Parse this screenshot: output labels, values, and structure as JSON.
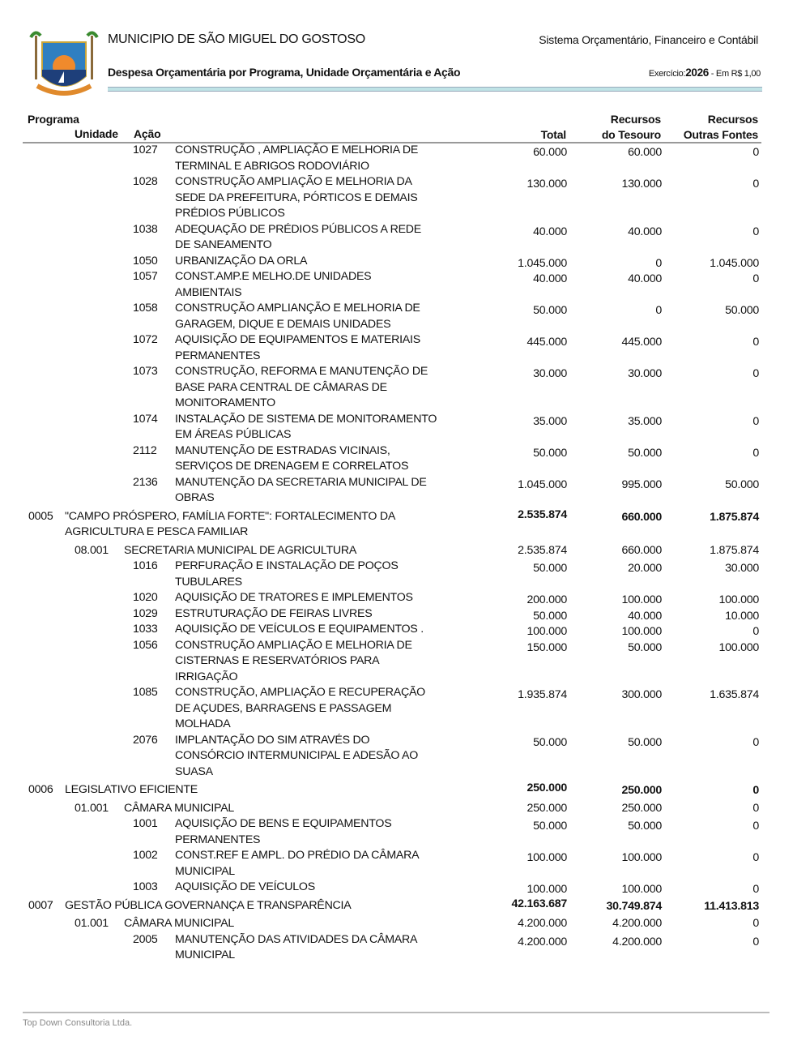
{
  "header": {
    "municipality": "MUNICIPIO DE SÃO MIGUEL DO GOSTOSO",
    "system": "Sistema Orçamentário, Financeiro e Contábil",
    "report_title": "Despesa Orçamentária por Programa, Unidade Orçamentária e Ação",
    "exercise_label": "Exercício:",
    "exercise_year": "2026",
    "currency": "- Em R$ 1,00",
    "accent_color": "#bfe3e6"
  },
  "columns": {
    "programa": "Programa",
    "unidade": "Unidade",
    "acao": "Ação",
    "total": "Total",
    "tesouro_1": "Recursos",
    "tesouro_2": "do Tesouro",
    "outras_1": "Recursos",
    "outras_2": "Outras Fontes"
  },
  "rows": [
    {
      "type": "acao",
      "code": "1027",
      "desc": "CONSTRUÇÃO , AMPLIAÇÃO E MELHORIA DE\nTERMINAL E ABRIGOS RODOVIÁRIO",
      "total": "60.000",
      "tesouro": "60.000",
      "outras": "0"
    },
    {
      "type": "acao",
      "code": "1028",
      "desc": "CONSTRUÇÃO AMPLIAÇÃO E MELHORIA  DA\nSEDE DA PREFEITURA, PÓRTICOS E DEMAIS\nPRÉDIOS PÚBLICOS",
      "total": "130.000",
      "tesouro": "130.000",
      "outras": "0"
    },
    {
      "type": "acao",
      "code": "1038",
      "desc": "ADEQUAÇÃO DE PRÉDIOS PÚBLICOS A REDE\nDE SANEAMENTO",
      "total": "40.000",
      "tesouro": "40.000",
      "outras": "0"
    },
    {
      "type": "acao",
      "code": "1050",
      "desc": "URBANIZAÇÃO DA ORLA",
      "total": "1.045.000",
      "tesouro": "0",
      "outras": "1.045.000"
    },
    {
      "type": "acao",
      "code": "1057",
      "desc": "CONST.AMP.E MELHO.DE UNIDADES\nAMBIENTAIS",
      "total": "40.000",
      "tesouro": "40.000",
      "outras": "0"
    },
    {
      "type": "acao",
      "code": "1058",
      "desc": "CONSTRUÇÃO AMPLIANÇÃO E MELHORIA DE\nGARAGEM, DIQUE E DEMAIS UNIDADES",
      "total": "50.000",
      "tesouro": "0",
      "outras": "50.000"
    },
    {
      "type": "acao",
      "code": "1072",
      "desc": "AQUISIÇÃO DE EQUIPAMENTOS E MATERIAIS\nPERMANENTES",
      "total": "445.000",
      "tesouro": "445.000",
      "outras": "0"
    },
    {
      "type": "acao",
      "code": "1073",
      "desc": "CONSTRUÇÃO, REFORMA E MANUTENÇÃO DE\nBASE PARA CENTRAL DE CÂMARAS DE\nMONITORAMENTO",
      "total": "30.000",
      "tesouro": "30.000",
      "outras": "0"
    },
    {
      "type": "acao",
      "code": "1074",
      "desc": "INSTALAÇÃO DE SISTEMA DE MONITORAMENTO\nEM ÁREAS PÚBLICAS",
      "total": "35.000",
      "tesouro": "35.000",
      "outras": "0"
    },
    {
      "type": "acao",
      "code": "2112",
      "desc": "MANUTENÇÃO DE ESTRADAS VICINAIS,\nSERVIÇOS DE DRENAGEM E CORRELATOS",
      "total": "50.000",
      "tesouro": "50.000",
      "outras": "0"
    },
    {
      "type": "acao",
      "code": "2136",
      "desc": "MANUTENÇÃO DA SECRETARIA MUNICIPAL DE\nOBRAS",
      "total": "1.045.000",
      "tesouro": "995.000",
      "outras": "50.000"
    },
    {
      "type": "prog",
      "code": "0005",
      "desc": "\"CAMPO PRÓSPERO, FAMÍLIA FORTE\": FORTALECIMENTO DA\nAGRICULTURA E PESCA FAMILIAR",
      "total": "2.535.874",
      "tesouro": "660.000",
      "outras": "1.875.874"
    },
    {
      "type": "unid",
      "code": "08.001",
      "desc": "SECRETARIA MUNICIPAL DE AGRICULTURA",
      "total": "2.535.874",
      "tesouro": "660.000",
      "outras": "1.875.874"
    },
    {
      "type": "acao",
      "code": "1016",
      "desc": "PERFURAÇÃO E INSTALAÇÃO DE POÇOS\nTUBULARES",
      "total": "50.000",
      "tesouro": "20.000",
      "outras": "30.000"
    },
    {
      "type": "acao",
      "code": "1020",
      "desc": "AQUISIÇÃO DE TRATORES E IMPLEMENTOS",
      "total": "200.000",
      "tesouro": "100.000",
      "outras": "100.000"
    },
    {
      "type": "acao",
      "code": "1029",
      "desc": "ESTRUTURAÇÃO DE FEIRAS LIVRES",
      "total": "50.000",
      "tesouro": "40.000",
      "outras": "10.000"
    },
    {
      "type": "acao",
      "code": "1033",
      "desc": "AQUISIÇÃO DE VEÍCULOS E EQUIPAMENTOS .",
      "total": "100.000",
      "tesouro": "100.000",
      "outras": "0"
    },
    {
      "type": "acao",
      "code": "1056",
      "desc": "CONSTRUÇÃO AMPLIAÇÃO  E MELHORIA DE\nCISTERNAS E RESERVATÓRIOS PARA\nIRRIGAÇÃO",
      "total": "150.000",
      "tesouro": "50.000",
      "outras": "100.000"
    },
    {
      "type": "acao",
      "code": "1085",
      "desc": "CONSTRUÇÃO, AMPLIAÇÃO E RECUPERAÇÃO\nDE AÇUDES, BARRAGENS E PASSAGEM\nMOLHADA",
      "total": "1.935.874",
      "tesouro": "300.000",
      "outras": "1.635.874"
    },
    {
      "type": "acao",
      "code": "2076",
      "desc": "IMPLANTAÇÃO DO SIM ATRAVÉS DO\nCONSÓRCIO INTERMUNICIPAL E ADESÃO AO\nSUASA",
      "total": "50.000",
      "tesouro": "50.000",
      "outras": "0"
    },
    {
      "type": "prog",
      "code": "0006",
      "desc": "LEGISLATIVO EFICIENTE",
      "total": "250.000",
      "tesouro": "250.000",
      "outras": "0"
    },
    {
      "type": "unid",
      "code": "01.001",
      "desc": "CÂMARA MUNICIPAL",
      "total": "250.000",
      "tesouro": "250.000",
      "outras": "0"
    },
    {
      "type": "acao",
      "code": "1001",
      "desc": "AQUISIÇÃO DE BENS E EQUIPAMENTOS\nPERMANENTES",
      "total": "50.000",
      "tesouro": "50.000",
      "outras": "0"
    },
    {
      "type": "acao",
      "code": "1002",
      "desc": "CONST.REF E AMPL. DO PRÉDIO DA CÂMARA\nMUNICIPAL",
      "total": "100.000",
      "tesouro": "100.000",
      "outras": "0"
    },
    {
      "type": "acao",
      "code": "1003",
      "desc": "AQUISIÇÃO DE VEÍCULOS",
      "total": "100.000",
      "tesouro": "100.000",
      "outras": "0"
    },
    {
      "type": "prog",
      "code": "0007",
      "desc": "GESTÃO PÚBLICA GOVERNANÇA E TRANSPARÊNCIA",
      "total": "42.163.687",
      "tesouro": "30.749.874",
      "outras": "11.413.813"
    },
    {
      "type": "unid",
      "code": "01.001",
      "desc": "CÂMARA MUNICIPAL",
      "total": "4.200.000",
      "tesouro": "4.200.000",
      "outras": "0"
    },
    {
      "type": "acao",
      "code": "2005",
      "desc": "MANUTENÇÃO DAS ATIVIDADES DA CÂMARA\nMUNICIPAL",
      "total": "4.200.000",
      "tesouro": "4.200.000",
      "outras": "0"
    }
  ],
  "footer": {
    "company": "Top Down Consultoria Ltda."
  }
}
